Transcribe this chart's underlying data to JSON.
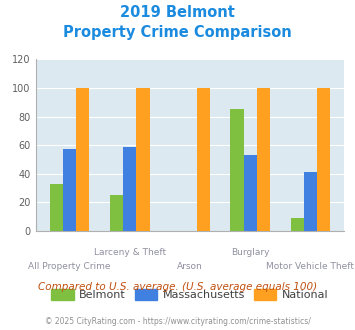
{
  "title_line1": "2019 Belmont",
  "title_line2": "Property Crime Comparison",
  "categories": [
    "All Property Crime",
    "Larceny & Theft",
    "Arson",
    "Burglary",
    "Motor Vehicle Theft"
  ],
  "belmont": [
    33,
    25,
    0,
    85,
    9
  ],
  "massachusetts": [
    57,
    59,
    0,
    53,
    41
  ],
  "national": [
    100,
    100,
    100,
    100,
    100
  ],
  "colors": {
    "belmont": "#80c040",
    "massachusetts": "#4080e0",
    "national": "#ffa020"
  },
  "ylim": [
    0,
    120
  ],
  "yticks": [
    0,
    20,
    40,
    60,
    80,
    100,
    120
  ],
  "bg_color": "#dce9f0",
  "footnote": "Compared to U.S. average. (U.S. average equals 100)",
  "copyright": "© 2025 CityRating.com - https://www.cityrating.com/crime-statistics/",
  "title_color": "#1b8be0",
  "footnote_color": "#c05010",
  "copyright_color": "#909090",
  "label_color": "#9090a0"
}
